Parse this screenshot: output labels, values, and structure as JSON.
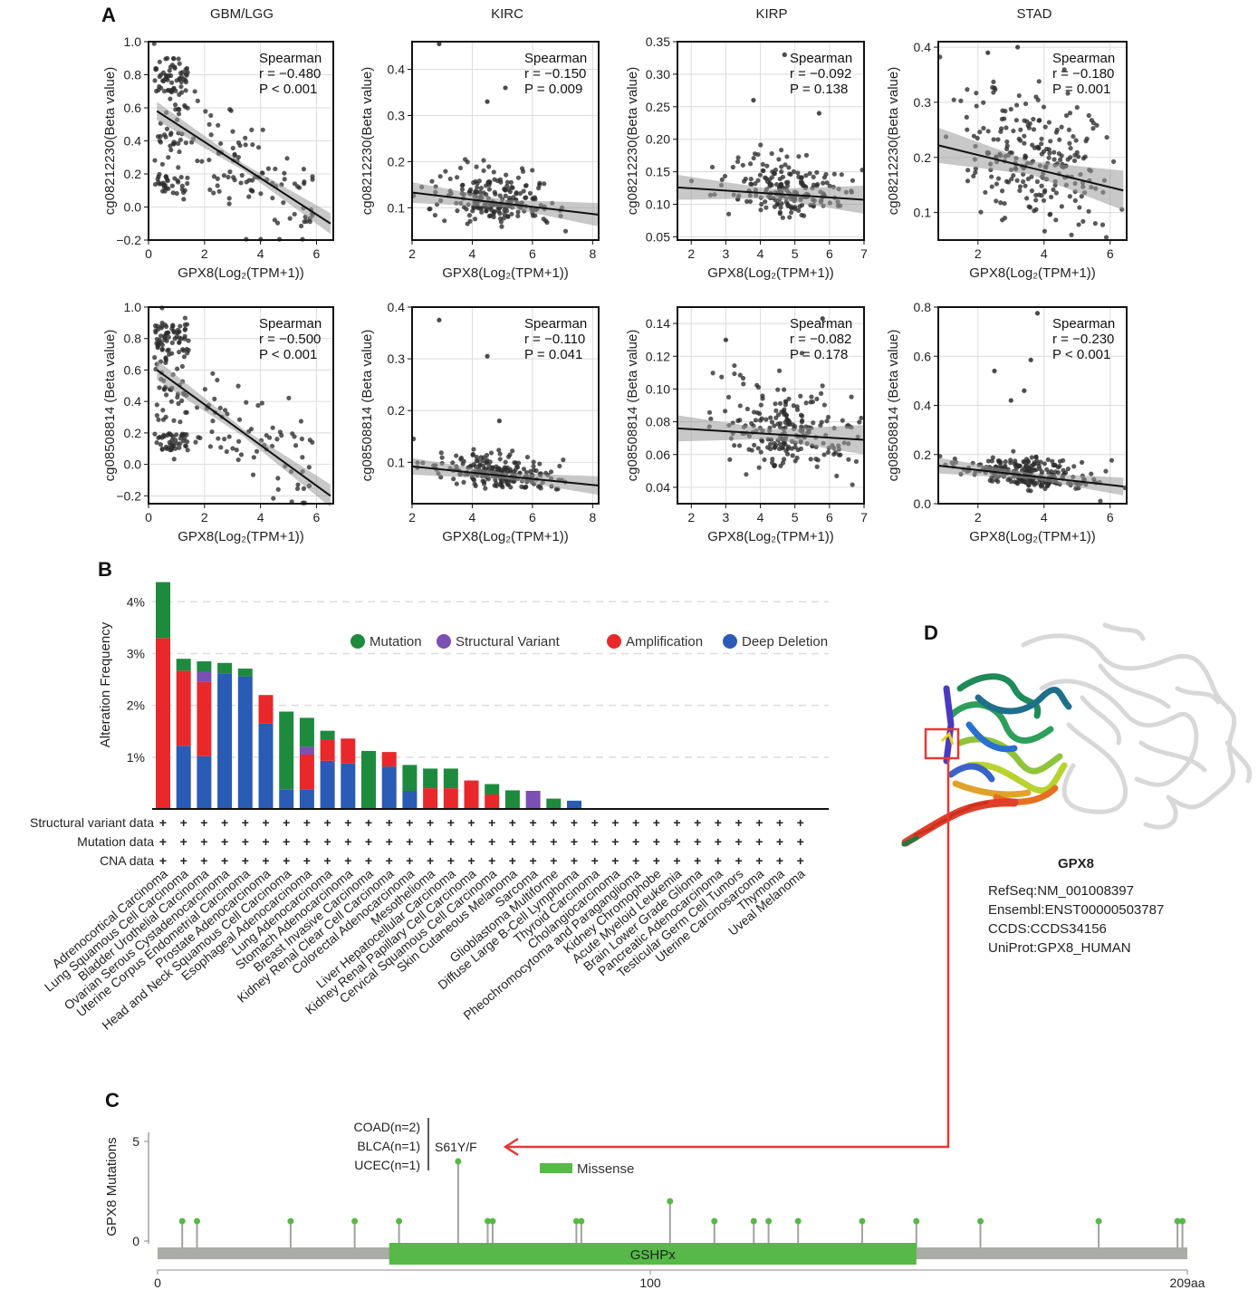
{
  "panels": {
    "A": "A",
    "B": "B",
    "C": "C",
    "D": "D"
  },
  "chart_data": [
    {
      "type": "scatter",
      "panel": "A",
      "title": "GBM/LGG",
      "ylabel": "cg08212230(Beta value)",
      "xlabel": "GPX8(Log₂(TPM+1))",
      "xlim": [
        0,
        6.6
      ],
      "ylim": [
        -0.2,
        1.0
      ],
      "xticks": [
        0,
        2,
        4,
        6
      ],
      "yticks": [
        -0.2,
        0.0,
        0.2,
        0.4,
        0.6,
        0.8,
        1.0
      ],
      "xtick_labels": [
        "0",
        "2",
        "4",
        "6"
      ],
      "ytick_labels": [
        "−0.2",
        "0.0",
        "0.2",
        "0.4",
        "0.6",
        "0.8",
        "1.0"
      ],
      "stat": {
        "method": "Spearman",
        "r": "r = −0.480",
        "p": "P < 0.001"
      },
      "fit": {
        "x": [
          0.3,
          6.5
        ],
        "y": [
          0.58,
          -0.1
        ]
      },
      "n_points": 230,
      "seed": 11,
      "model": "gbm",
      "band": 0.035
    },
    {
      "type": "scatter",
      "panel": "A",
      "title": "KIRC",
      "ylabel": "cg08212230(Beta value)",
      "xlabel": "GPX8(Log₂(TPM+1))",
      "xlim": [
        2,
        8.2
      ],
      "ylim": [
        0.03,
        0.46
      ],
      "xticks": [
        2,
        4,
        6,
        8
      ],
      "yticks": [
        0.1,
        0.2,
        0.3,
        0.4
      ],
      "xtick_labels": [
        "2",
        "4",
        "6",
        "8"
      ],
      "ytick_labels": [
        "0.1",
        "0.2",
        "0.3",
        "0.4"
      ],
      "stat": {
        "method": "Spearman",
        "r": "r = −0.150",
        "p": "P = 0.009"
      },
      "fit": {
        "x": [
          2.0,
          8.2
        ],
        "y": [
          0.133,
          0.085
        ]
      },
      "n_points": 210,
      "seed": 23,
      "model": "flat",
      "center": 4.8,
      "spread": 0.9,
      "sd": 0.035,
      "outliers": [
        [
          2.9,
          0.455
        ],
        [
          5.1,
          0.36
        ],
        [
          4.5,
          0.33
        ]
      ],
      "band": 0.014
    },
    {
      "type": "scatter",
      "panel": "A",
      "title": "KIRP",
      "ylabel": "cg08212230(Beta value)",
      "xlabel": "GPX8(Log₂(TPM+1))",
      "xlim": [
        1.6,
        7.0
      ],
      "ylim": [
        0.045,
        0.35
      ],
      "xticks": [
        2,
        3,
        4,
        5,
        6,
        7
      ],
      "yticks": [
        0.05,
        0.1,
        0.15,
        0.2,
        0.25,
        0.3,
        0.35
      ],
      "xtick_labels": [
        "2",
        "3",
        "4",
        "5",
        "6",
        "7"
      ],
      "ytick_labels": [
        "0.05",
        "0.10",
        "0.15",
        "0.20",
        "0.25",
        "0.30",
        "0.35"
      ],
      "stat": {
        "method": "Spearman",
        "r": "r = −0.092",
        "p": "P = 0.138"
      },
      "fit": {
        "x": [
          1.6,
          7.0
        ],
        "y": [
          0.126,
          0.107
        ]
      },
      "n_points": 200,
      "seed": 37,
      "model": "flat",
      "center": 4.8,
      "spread": 0.9,
      "sd": 0.028,
      "outliers": [
        [
          4.7,
          0.33
        ],
        [
          3.8,
          0.26
        ],
        [
          5.7,
          0.24
        ]
      ],
      "band": 0.012
    },
    {
      "type": "scatter",
      "panel": "A",
      "title": "STAD",
      "ylabel": "cg08212230(Beta value)",
      "xlabel": "GPX8(Log₂(TPM+1))",
      "xlim": [
        0.8,
        6.5
      ],
      "ylim": [
        0.05,
        0.41
      ],
      "xticks": [
        2,
        4,
        6
      ],
      "yticks": [
        0.1,
        0.2,
        0.3,
        0.4
      ],
      "xtick_labels": [
        "2",
        "4",
        "6"
      ],
      "ytick_labels": [
        "0.1",
        "0.2",
        "0.3",
        "0.4"
      ],
      "stat": {
        "method": "Spearman",
        "r": "r = −0.180",
        "p": "P = 0.001"
      },
      "fit": {
        "x": [
          0.8,
          6.4
        ],
        "y": [
          0.222,
          0.14
        ]
      },
      "n_points": 240,
      "seed": 41,
      "model": "flat",
      "center": 3.6,
      "spread": 1.1,
      "sd": 0.075,
      "outliers": [
        [
          2.3,
          0.39
        ],
        [
          3.2,
          0.4
        ]
      ],
      "band": 0.02
    },
    {
      "type": "scatter",
      "panel": "A",
      "title": "",
      "ylabel": "cg08508814 (Beta value)",
      "xlabel": "GPX8(Log₂(TPM+1))",
      "xlim": [
        0,
        6.6
      ],
      "ylim": [
        -0.25,
        1.0
      ],
      "xticks": [
        0,
        2,
        4,
        6
      ],
      "yticks": [
        -0.2,
        0.0,
        0.2,
        0.4,
        0.6,
        0.8,
        1.0
      ],
      "xtick_labels": [
        "0",
        "2",
        "4",
        "6"
      ],
      "ytick_labels": [
        "−0.2",
        "0.0",
        "0.2",
        "0.4",
        "0.6",
        "0.8",
        "1.0"
      ],
      "stat": {
        "method": "Spearman",
        "r": "r = −0.500",
        "p": "P < 0.001"
      },
      "fit": {
        "x": [
          0.3,
          6.5
        ],
        "y": [
          0.6,
          -0.2
        ]
      },
      "n_points": 230,
      "seed": 53,
      "model": "gbm",
      "band": 0.04
    },
    {
      "type": "scatter",
      "panel": "A",
      "title": "",
      "ylabel": "cg08508814 (Beta value)",
      "xlabel": "GPX8(Log₂(TPM+1))",
      "xlim": [
        2,
        8.2
      ],
      "ylim": [
        0.02,
        0.4
      ],
      "xticks": [
        2,
        4,
        6,
        8
      ],
      "yticks": [
        0.1,
        0.2,
        0.3,
        0.4
      ],
      "xtick_labels": [
        "2",
        "4",
        "6",
        "8"
      ],
      "ytick_labels": [
        "0.1",
        "0.2",
        "0.3",
        "0.4"
      ],
      "stat": {
        "method": "Spearman",
        "r": "r = −0.110",
        "p": "P = 0.041"
      },
      "fit": {
        "x": [
          2.0,
          8.2
        ],
        "y": [
          0.092,
          0.055
        ]
      },
      "n_points": 220,
      "seed": 67,
      "model": "flat",
      "center": 4.8,
      "spread": 0.9,
      "sd": 0.018,
      "outliers": [
        [
          2.9,
          0.375
        ],
        [
          4.5,
          0.305
        ],
        [
          4.9,
          0.18
        ]
      ],
      "band": 0.01
    },
    {
      "type": "scatter",
      "panel": "A",
      "title": "",
      "ylabel": "cg08508814 (Beta value)",
      "xlabel": "GPX8(Log₂(TPM+1))",
      "xlim": [
        1.6,
        7.0
      ],
      "ylim": [
        0.03,
        0.15
      ],
      "xticks": [
        2,
        3,
        4,
        5,
        6,
        7
      ],
      "yticks": [
        0.04,
        0.06,
        0.08,
        0.1,
        0.12,
        0.14
      ],
      "xtick_labels": [
        "2",
        "3",
        "4",
        "5",
        "6",
        "7"
      ],
      "ytick_labels": [
        "0.04",
        "0.06",
        "0.08",
        "0.10",
        "0.12",
        "0.14"
      ],
      "stat": {
        "method": "Spearman",
        "r": "r = −0.082",
        "p": "P = 0.178"
      },
      "fit": {
        "x": [
          1.6,
          7.0
        ],
        "y": [
          0.076,
          0.069
        ]
      },
      "n_points": 220,
      "seed": 71,
      "model": "flat",
      "center": 4.8,
      "spread": 0.9,
      "sd": 0.016,
      "outliers": [
        [
          5.8,
          0.143
        ],
        [
          3.0,
          0.13
        ]
      ],
      "band": 0.005
    },
    {
      "type": "scatter",
      "panel": "A",
      "title": "",
      "ylabel": "cg08508814 (Beta value)",
      "xlabel": "GPX8(Log₂(TPM+1))",
      "xlim": [
        0.8,
        6.5
      ],
      "ylim": [
        0.0,
        0.8
      ],
      "xticks": [
        2,
        4,
        6
      ],
      "yticks": [
        0.0,
        0.2,
        0.4,
        0.6,
        0.8
      ],
      "xtick_labels": [
        "2",
        "4",
        "6"
      ],
      "ytick_labels": [
        "0.0",
        "0.2",
        "0.4",
        "0.6",
        "0.8"
      ],
      "stat": {
        "method": "Spearman",
        "r": "r = −0.230",
        "p": "P < 0.001"
      },
      "fit": {
        "x": [
          0.8,
          6.4
        ],
        "y": [
          0.155,
          0.07
        ]
      },
      "n_points": 240,
      "seed": 83,
      "model": "flat",
      "center": 3.6,
      "spread": 1.0,
      "sd": 0.04,
      "outliers": [
        [
          3.8,
          0.775
        ],
        [
          3.6,
          0.585
        ],
        [
          2.5,
          0.54
        ],
        [
          3.4,
          0.46
        ],
        [
          3.0,
          0.42
        ]
      ],
      "band": 0.02
    },
    {
      "type": "bar",
      "panel": "B",
      "ylabel": "Alteration Frequency",
      "yticks": [
        1,
        2,
        3,
        4
      ],
      "ytick_labels": [
        "1%",
        "2%",
        "3%",
        "4%"
      ],
      "ylim": [
        0,
        4.6
      ],
      "legend": [
        {
          "name": "Mutation",
          "color": "#1e8a3e"
        },
        {
          "name": "Structural Variant",
          "color": "#7b4fb3"
        },
        {
          "name": "Amplification",
          "color": "#e8282b"
        },
        {
          "name": "Deep Deletion",
          "color": "#2a5bb5"
        }
      ],
      "row_labels": [
        "Structural variant data",
        "Mutation data",
        "CNA data"
      ],
      "row_marker": "+",
      "categories": [
        "Adrenocortical Carcinoma",
        "Lung Squamous Cell Carcinoma",
        "Bladder Urothelial Carcinoma",
        "Ovarian Serous Cystadenocarcinoma",
        "Uterine Corpus Endometrial Carcinoma",
        "Prostate Adenocarcinoma",
        "Head and Neck Squamous Cell Carcinoma",
        "Esophageal Adenocarcinoma",
        "Lung Adenocarcinoma",
        "Stomach Adenocarcinoma",
        "Breast Invasive Carcinoma",
        "Kidney Renal Clear Cell Carcinoma",
        "Colorectal Adenocarcinoma",
        "Mesothelioma",
        "Liver Hepatocellular Carcinoma",
        "Kidney Renal Papillary Cell Carcinoma",
        "Cervical Squamous Cell Carcinoma",
        "Skin Cutaneous Melanoma",
        "Sarcoma",
        "Glioblastoma Multiforme",
        "Diffuse Large B-Cell Lymphoma",
        "Thyroid Carcinoma",
        "Cholangiocarcinoma",
        "Pheochromocytoma and Paraganglioma",
        "Kidney Chromophobe",
        "Acute Myeloid Leukemia",
        "Brain Lower Grade Glioma",
        "Pancreatic Adenocarcinoma",
        "Testicular Germ Cell Tumors",
        "Uterine Carcinosarcoma",
        "Thymoma",
        "Uveal Melanoma"
      ],
      "series": [
        {
          "name": "Deep Deletion",
          "values": [
            0,
            1.22,
            1.02,
            2.62,
            2.56,
            1.65,
            0.38,
            0.38,
            0.93,
            0.88,
            0,
            0.82,
            0.35,
            0,
            0,
            0,
            0,
            0,
            0,
            0,
            0.16,
            0,
            0,
            0,
            0,
            0,
            0,
            0,
            0,
            0,
            0,
            0
          ]
        },
        {
          "name": "Amplification",
          "values": [
            3.3,
            1.45,
            1.43,
            0,
            0,
            0.55,
            0,
            0.67,
            0.4,
            0.48,
            0,
            0.28,
            0,
            0.4,
            0.4,
            0.55,
            0.28,
            0,
            0,
            0,
            0,
            0,
            0,
            0,
            0,
            0,
            0,
            0,
            0,
            0,
            0,
            0
          ]
        },
        {
          "name": "Structural Variant",
          "values": [
            0,
            0,
            0.2,
            0,
            0,
            0,
            0,
            0.15,
            0,
            0,
            0,
            0,
            0,
            0,
            0,
            0,
            0,
            0,
            0.35,
            0,
            0,
            0,
            0,
            0,
            0,
            0,
            0,
            0,
            0,
            0,
            0,
            0
          ]
        },
        {
          "name": "Mutation",
          "values": [
            1.08,
            0.23,
            0.2,
            0.2,
            0.15,
            0,
            1.5,
            0.56,
            0.18,
            0,
            1.12,
            0,
            0.5,
            0.38,
            0.38,
            0,
            0.2,
            0.36,
            0,
            0.2,
            0,
            0,
            0,
            0,
            0,
            0,
            0,
            0,
            0,
            0,
            0,
            0
          ]
        }
      ]
    },
    {
      "type": "lollipop",
      "panel": "C",
      "ylabel": "GPX8 Mutations",
      "yticks": [
        0,
        5
      ],
      "ytick_labels": [
        "0",
        "5"
      ],
      "ylim": [
        0,
        5
      ],
      "xlim": [
        0,
        209
      ],
      "xtick_values": [
        0,
        100,
        209
      ],
      "xtick_labels": [
        "0",
        "100",
        "209aa"
      ],
      "domain": {
        "name": "GSHPx",
        "start": 47,
        "end": 154
      },
      "legend": "Missense",
      "positions": [
        5,
        8,
        27,
        40,
        49,
        61,
        67,
        68,
        85,
        86,
        104,
        113,
        121,
        124,
        130,
        143,
        154,
        167,
        191,
        207,
        208
      ],
      "counts": [
        1,
        1,
        1,
        1,
        1,
        4,
        1,
        1,
        1,
        1,
        2,
        1,
        1,
        1,
        1,
        1,
        1,
        1,
        1,
        1,
        1
      ],
      "hotspot_label": "S61Y/F",
      "hotspot_sources": [
        "COAD(n=2)",
        "BLCA(n=1)",
        "UCEC(n=1)"
      ]
    }
  ],
  "protein": {
    "name": "GPX8",
    "refseq": "RefSeq:NM_001008397",
    "ensembl": "Ensembl:ENST00000503787",
    "ccds": "CCDS:CCDS34156",
    "uniprot": "UniProt:GPX8_HUMAN"
  },
  "colors": {
    "dot": "#2b2b2b",
    "fit": "#111111",
    "band": "#9a9a9a",
    "grid": "#dcdcdc",
    "gray_bar": "#a9ada6",
    "domain": "#57b947",
    "stem": "#a0a39e",
    "red": "#e53935"
  }
}
